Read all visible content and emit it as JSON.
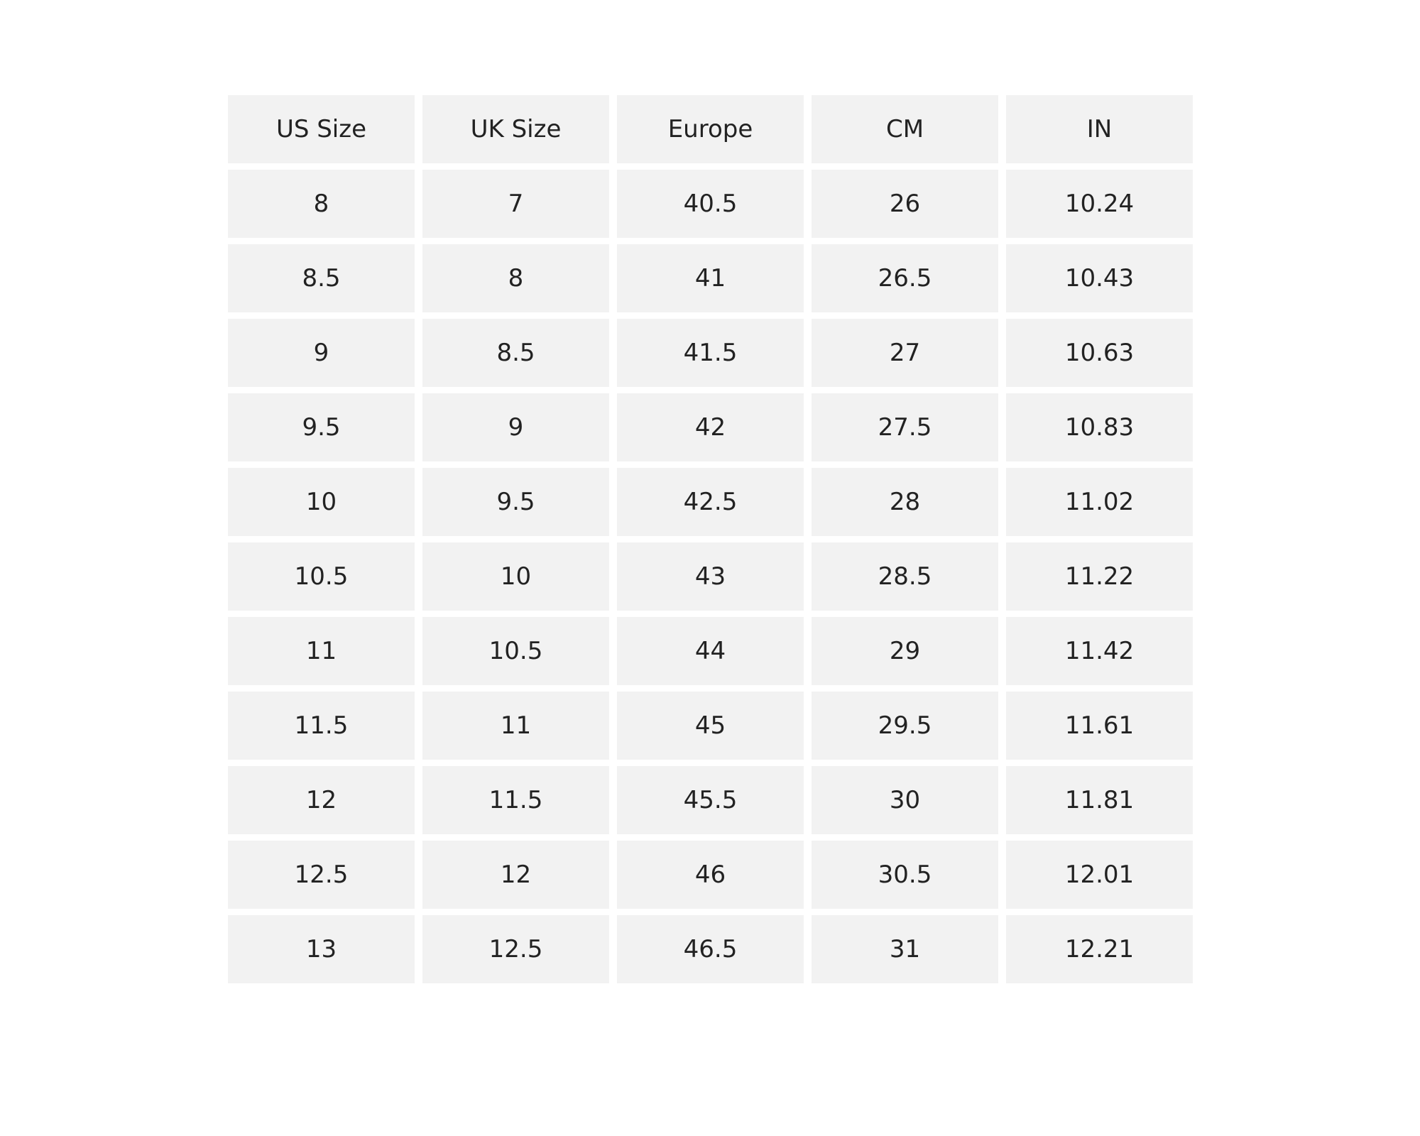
{
  "table": {
    "header": [
      "US Size",
      "UK Size",
      "Europe",
      "CM",
      "IN"
    ],
    "rows": [
      [
        "8",
        "7",
        "40.5",
        "26",
        "10.24"
      ],
      [
        "8.5",
        "8",
        "41",
        "26.5",
        "10.43"
      ],
      [
        "9",
        "8.5",
        "41.5",
        "27",
        "10.63"
      ],
      [
        "9.5",
        "9",
        "42",
        "27.5",
        "10.83"
      ],
      [
        "10",
        "9.5",
        "42.5",
        "28",
        "11.02"
      ],
      [
        "10.5",
        "10",
        "43",
        "28.5",
        "11.22"
      ],
      [
        "11",
        "10.5",
        "44",
        "29",
        "11.42"
      ],
      [
        "11.5",
        "11",
        "45",
        "29.5",
        "11.61"
      ],
      [
        "12",
        "11.5",
        "45.5",
        "30",
        "11.81"
      ],
      [
        "12.5",
        "12",
        "46",
        "30.5",
        "12.01"
      ],
      [
        "13",
        "12.5",
        "46.5",
        "31",
        "12.21"
      ]
    ]
  }
}
